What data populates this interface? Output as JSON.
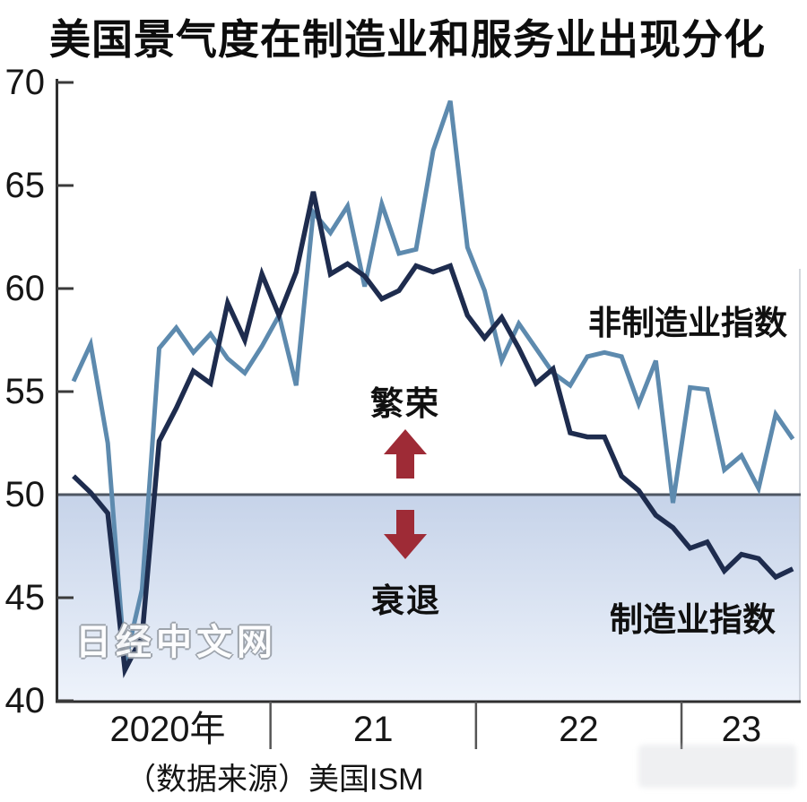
{
  "title": "美国景气度在制造业和服务业出现分化",
  "source_note": "（数据来源）美国ISM",
  "watermark": "日经中文网",
  "annotations": {
    "above_line_label": "繁荣",
    "below_line_label": "衰退",
    "up_arrow_icon": "up-arrow",
    "down_arrow_icon": "down-arrow",
    "arrow_color": "#9e2b36"
  },
  "colors": {
    "non_manufacturing_line": "#5d8aae",
    "manufacturing_line": "#1e2c4e",
    "axis": "#2f2f2f",
    "reference_line": "#4e5662",
    "shade_top": "#c6d3e9",
    "shade_bottom": "#eef3fb"
  },
  "chart_data": {
    "type": "line",
    "x_unit": "month",
    "x_range_months": 43,
    "year_labels": [
      {
        "label": "2020年",
        "center_month_index": 5.5
      },
      {
        "label": "21",
        "center_month_index": 17.5
      },
      {
        "label": "22",
        "center_month_index": 29.5
      },
      {
        "label": "23",
        "center_month_index": 39
      }
    ],
    "year_divider_month_indices": [
      11.5,
      23.5,
      35.5
    ],
    "ylim": [
      40,
      70
    ],
    "yticks": [
      70,
      65,
      60,
      55,
      50,
      45,
      40
    ],
    "reference_line_value": 50,
    "grid": false,
    "legend_position": "inline-labels",
    "series": [
      {
        "name": "非制造业指数",
        "color": "#5d8aae",
        "values": [
          55.5,
          57.3,
          52.5,
          41.8,
          45.4,
          57.1,
          58.1,
          56.9,
          57.8,
          56.6,
          55.9,
          57.2,
          58.7,
          55.3,
          63.7,
          62.7,
          64.0,
          60.1,
          64.1,
          61.7,
          61.9,
          66.7,
          69.1,
          62.0,
          59.9,
          56.5,
          58.3,
          57.1,
          55.9,
          55.3,
          56.7,
          56.9,
          56.7,
          54.4,
          56.5,
          49.6,
          55.2,
          55.1,
          51.2,
          51.9,
          50.3,
          53.9,
          52.7
        ]
      },
      {
        "name": "制造业指数",
        "color": "#1e2c4e",
        "values": [
          50.9,
          50.1,
          49.1,
          41.5,
          43.1,
          52.6,
          54.2,
          56.0,
          55.4,
          59.3,
          57.5,
          60.7,
          58.7,
          60.8,
          64.7,
          60.7,
          61.2,
          60.6,
          59.5,
          59.9,
          61.1,
          60.8,
          61.1,
          58.7,
          57.6,
          58.6,
          57.1,
          55.4,
          56.1,
          53.0,
          52.8,
          52.8,
          50.9,
          50.2,
          49.0,
          48.4,
          47.4,
          47.7,
          46.3,
          47.1,
          46.9,
          46.0,
          46.4
        ]
      }
    ]
  }
}
